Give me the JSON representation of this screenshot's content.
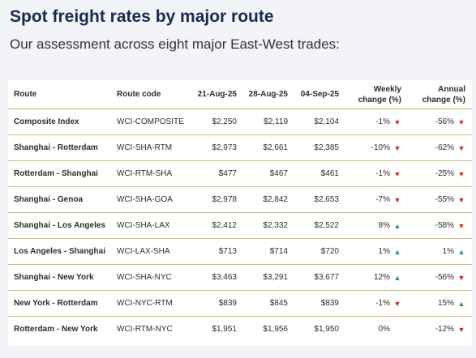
{
  "title": "Spot freight rates by major route",
  "subtitle": "Our assessment across eight major East-West trades:",
  "colors": {
    "title": "#1b2a52",
    "rule": "#c9ad6e",
    "down": "#d9261c",
    "up": "#2e9a3f"
  },
  "table": {
    "headers": {
      "route": "Route",
      "code": "Route code",
      "d1": "21-Aug-25",
      "d2": "28-Aug-25",
      "d3": "04-Sep-25",
      "weekly_line1": "Weekly",
      "weekly_line2": "change (%)",
      "annual_line1": "Annual",
      "annual_line2": "change (%)"
    },
    "rows": [
      {
        "route": "Composite Index",
        "code": "WCI-COMPOSITE",
        "d1": "$2,250",
        "d2": "$2,119",
        "d3": "$2,104",
        "weekly": "-1%",
        "weekly_dir": "down",
        "annual": "-56%",
        "annual_dir": "down"
      },
      {
        "route": "Shanghai - Rotterdam",
        "code": "WCI-SHA-RTM",
        "d1": "$2,973",
        "d2": "$2,661",
        "d3": "$2,385",
        "weekly": "-10%",
        "weekly_dir": "down",
        "annual": "-62%",
        "annual_dir": "down"
      },
      {
        "route": "Rotterdam - Shanghai",
        "code": "WCI-RTM-SHA",
        "d1": "$477",
        "d2": "$467",
        "d3": "$461",
        "weekly": "-1%",
        "weekly_dir": "down",
        "annual": "-25%",
        "annual_dir": "down"
      },
      {
        "route": "Shanghai - Genoa",
        "code": "WCI-SHA-GOA",
        "d1": "$2,978",
        "d2": "$2,842",
        "d3": "$2,653",
        "weekly": "-7%",
        "weekly_dir": "down",
        "annual": "-55%",
        "annual_dir": "down"
      },
      {
        "route": "Shanghai - Los Angeles",
        "code": "WCI-SHA-LAX",
        "d1": "$2,412",
        "d2": "$2,332",
        "d3": "$2,522",
        "weekly": "8%",
        "weekly_dir": "up",
        "annual": "-58%",
        "annual_dir": "down"
      },
      {
        "route": "Los Angeles - Shanghai",
        "code": "WCI-LAX-SHA",
        "d1": "$713",
        "d2": "$714",
        "d3": "$720",
        "weekly": "1%",
        "weekly_dir": "up",
        "annual": "1%",
        "annual_dir": "up"
      },
      {
        "route": "Shanghai - New York",
        "code": "WCI-SHA-NYC",
        "d1": "$3,463",
        "d2": "$3,291",
        "d3": "$3,677",
        "weekly": "12%",
        "weekly_dir": "up",
        "annual": "-56%",
        "annual_dir": "down"
      },
      {
        "route": "New York - Rotterdam",
        "code": "WCI-NYC-RTM",
        "d1": "$839",
        "d2": "$845",
        "d3": "$839",
        "weekly": "-1%",
        "weekly_dir": "down",
        "annual": "15%",
        "annual_dir": "up"
      },
      {
        "route": "Rotterdam - New York",
        "code": "WCI-RTM-NYC",
        "d1": "$1,951",
        "d2": "$1,956",
        "d3": "$1,950",
        "weekly": "0%",
        "weekly_dir": "none",
        "annual": "-12%",
        "annual_dir": "down"
      }
    ]
  }
}
